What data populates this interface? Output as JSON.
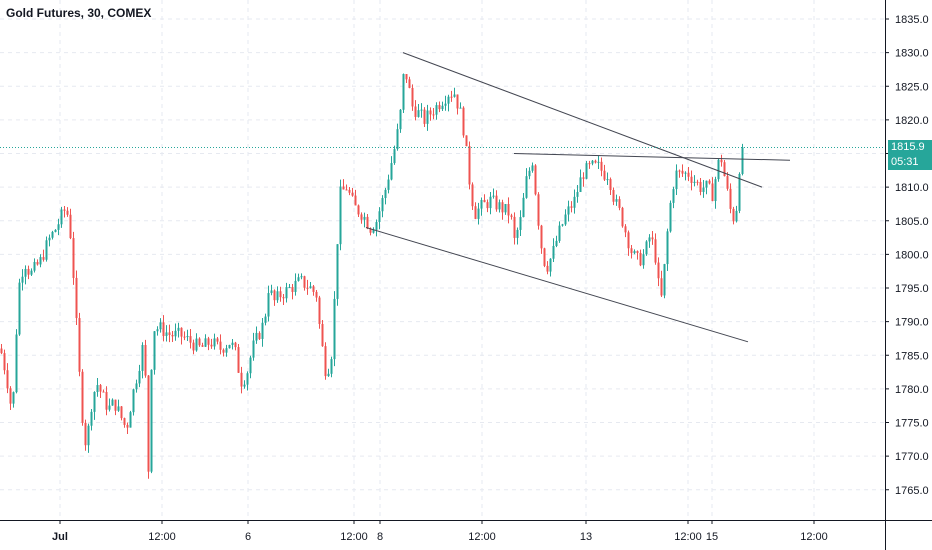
{
  "header": {
    "title": "Gold Futures, 30, COMEX"
  },
  "current_price": {
    "value": "1815.9",
    "countdown": "05:31",
    "color": "#26a69a"
  },
  "colors": {
    "up": "#26a69a",
    "down": "#ef5350",
    "axis": "#131722",
    "grid": "#e6e9f0",
    "trend": "#434651"
  },
  "chart_data": {
    "type": "candlestick",
    "title": "Gold Futures, 30, COMEX",
    "ylim": [
      1760,
      1837
    ],
    "y_ticks": [
      1765,
      1770,
      1775,
      1780,
      1785,
      1790,
      1795,
      1800,
      1805,
      1810,
      1815,
      1820,
      1825,
      1830,
      1835
    ],
    "y_tick_labels": [
      "1765.0",
      "1770.0",
      "1775.0",
      "1780.0",
      "1785.0",
      "1790.0",
      "1795.0",
      "1800.0",
      "1805.0",
      "1810.0",
      "1815.0",
      "1820.0",
      "1825.0",
      "1830.0",
      "1835.0"
    ],
    "x_tick_labels": [
      "Jul",
      "12:00",
      "6",
      "12:00",
      "8",
      "12:00",
      "13",
      "12:00",
      "15",
      "12:00"
    ],
    "grid": true,
    "last_price": 1815.9,
    "close_path": [
      [
        0,
        1786
      ],
      [
        6,
        1782
      ],
      [
        12,
        1776
      ],
      [
        18,
        1795
      ],
      [
        24,
        1799
      ],
      [
        30,
        1797
      ],
      [
        40,
        1799
      ],
      [
        48,
        1802
      ],
      [
        56,
        1804
      ],
      [
        62,
        1806
      ],
      [
        66,
        1807
      ],
      [
        70,
        1803
      ],
      [
        74,
        1795
      ],
      [
        78,
        1784
      ],
      [
        82,
        1776
      ],
      [
        86,
        1771
      ],
      [
        90,
        1777
      ],
      [
        96,
        1781
      ],
      [
        102,
        1779
      ],
      [
        108,
        1777
      ],
      [
        114,
        1778
      ],
      [
        120,
        1776
      ],
      [
        126,
        1774
      ],
      [
        132,
        1779
      ],
      [
        138,
        1783
      ],
      [
        142,
        1786
      ],
      [
        146,
        1780
      ],
      [
        148,
        1768
      ],
      [
        152,
        1789
      ],
      [
        160,
        1789
      ],
      [
        170,
        1788
      ],
      [
        180,
        1788
      ],
      [
        190,
        1787
      ],
      [
        200,
        1786
      ],
      [
        210,
        1787
      ],
      [
        220,
        1786
      ],
      [
        230,
        1787
      ],
      [
        236,
        1785
      ],
      [
        240,
        1781
      ],
      [
        246,
        1782
      ],
      [
        252,
        1786
      ],
      [
        258,
        1788
      ],
      [
        264,
        1790
      ],
      [
        268,
        1795
      ],
      [
        274,
        1793
      ],
      [
        280,
        1794
      ],
      [
        290,
        1795
      ],
      [
        300,
        1796
      ],
      [
        310,
        1795
      ],
      [
        316,
        1794
      ],
      [
        320,
        1788
      ],
      [
        326,
        1782
      ],
      [
        332,
        1786
      ],
      [
        336,
        1800
      ],
      [
        340,
        1809
      ],
      [
        346,
        1810
      ],
      [
        354,
        1807
      ],
      [
        362,
        1806
      ],
      [
        370,
        1804
      ],
      [
        376,
        1805
      ],
      [
        384,
        1809
      ],
      [
        390,
        1813
      ],
      [
        396,
        1817
      ],
      [
        400,
        1821
      ],
      [
        404,
        1828
      ],
      [
        408,
        1825
      ],
      [
        412,
        1822
      ],
      [
        418,
        1821
      ],
      [
        424,
        1820
      ],
      [
        430,
        1821
      ],
      [
        436,
        1822
      ],
      [
        442,
        1823
      ],
      [
        448,
        1824
      ],
      [
        454,
        1824
      ],
      [
        460,
        1821
      ],
      [
        464,
        1818
      ],
      [
        468,
        1812
      ],
      [
        474,
        1806
      ],
      [
        480,
        1807
      ],
      [
        490,
        1808
      ],
      [
        500,
        1807
      ],
      [
        510,
        1806
      ],
      [
        514,
        1802
      ],
      [
        520,
        1805
      ],
      [
        526,
        1811
      ],
      [
        532,
        1814
      ],
      [
        538,
        1805
      ],
      [
        542,
        1800
      ],
      [
        546,
        1798
      ],
      [
        552,
        1800
      ],
      [
        558,
        1803
      ],
      [
        566,
        1806
      ],
      [
        574,
        1808
      ],
      [
        582,
        1812
      ],
      [
        590,
        1813
      ],
      [
        598,
        1813
      ],
      [
        604,
        1812
      ],
      [
        608,
        1812
      ],
      [
        614,
        1808
      ],
      [
        620,
        1806
      ],
      [
        626,
        1803
      ],
      [
        632,
        1800
      ],
      [
        638,
        1799
      ],
      [
        644,
        1800
      ],
      [
        650,
        1803
      ],
      [
        656,
        1799
      ],
      [
        660,
        1792
      ],
      [
        664,
        1798
      ],
      [
        668,
        1805
      ],
      [
        672,
        1810
      ],
      [
        676,
        1812
      ],
      [
        682,
        1812
      ],
      [
        688,
        1812
      ],
      [
        694,
        1811
      ],
      [
        700,
        1810
      ],
      [
        706,
        1810
      ],
      [
        712,
        1809
      ],
      [
        716,
        1812
      ],
      [
        720,
        1815
      ],
      [
        726,
        1810
      ],
      [
        732,
        1805
      ],
      [
        736,
        1807
      ],
      [
        740,
        1815
      ],
      [
        742,
        1815.9
      ]
    ],
    "trendlines": [
      {
        "name": "upper-trendline",
        "from": [
          403,
          1830
        ],
        "to": [
          762,
          1810
        ]
      },
      {
        "name": "horizontal-trendline",
        "from": [
          514,
          1815
        ],
        "to": [
          790,
          1814
        ]
      },
      {
        "name": "lower-trendline",
        "from": [
          366,
          1804
        ],
        "to": [
          748,
          1787
        ]
      }
    ]
  }
}
